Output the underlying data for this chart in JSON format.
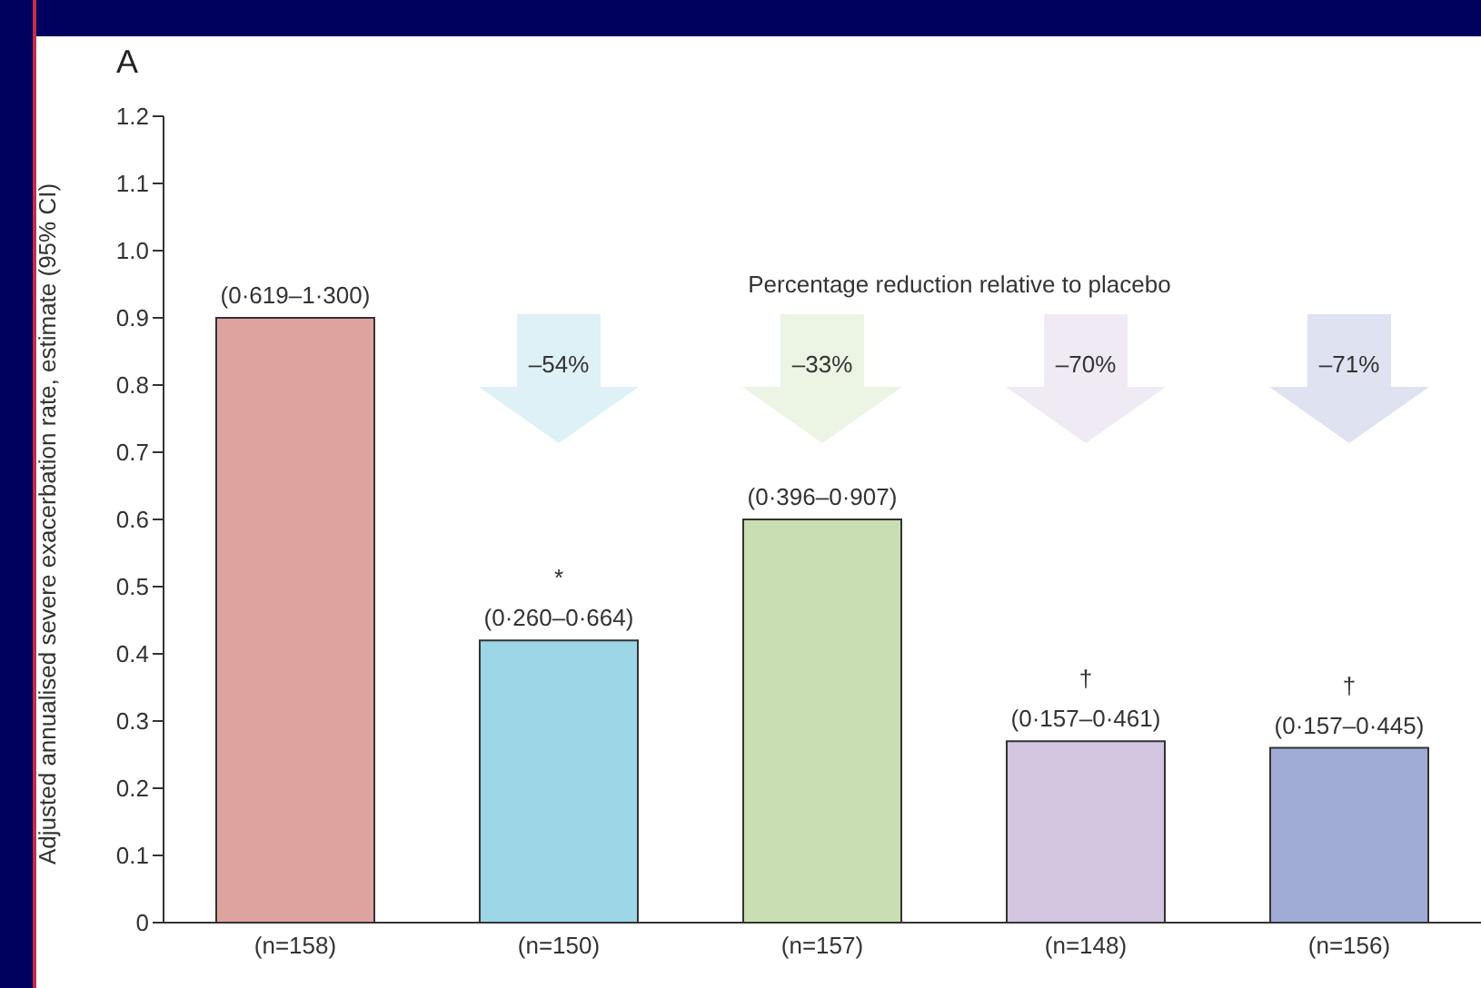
{
  "chart_data": {
    "type": "bar",
    "title": "A",
    "ylabel": "Adjusted annualised severe exacerbation rate, estimate (95% CI)",
    "categories": [
      "(n=158)",
      "(n=150)",
      "(n=157)",
      "(n=148)",
      "(n=156)"
    ],
    "values": [
      0.9,
      0.42,
      0.6,
      0.27,
      0.26
    ],
    "colors": [
      "#dfa39f",
      "#9dd6e6",
      "#c9dfb3",
      "#d3c4e0",
      "#a0acd6"
    ],
    "ylim": [
      0,
      1.2
    ],
    "yticks": [
      0,
      0.1,
      0.2,
      0.3,
      0.4,
      0.5,
      0.6,
      0.7,
      0.8,
      0.9,
      {
        "value": 1.0,
        "label": "1.0"
      },
      1.1,
      1.2
    ],
    "grid": false,
    "legend": false,
    "annotations": [
      "Percentage reduction relative to placebo",
      "–54%",
      "–33%",
      "–70%",
      "–71%",
      {
        "text": "(0·619–1·300)",
        "x": "(n=158)",
        "y": 0.9
      },
      {
        "text": "(0·260–0·664)",
        "x": "(n=150)",
        "y": 0.42
      },
      {
        "text": "(0·396–0·907)",
        "x": "(n=157)",
        "y": 0.6
      },
      {
        "text": "(0·157–0·461)",
        "x": "(n=148)",
        "y": 0.27
      },
      {
        "text": "(0·157–0·445)",
        "x": "(n=156)",
        "y": 0.26
      },
      "*",
      "†",
      "†"
    ]
  }
}
